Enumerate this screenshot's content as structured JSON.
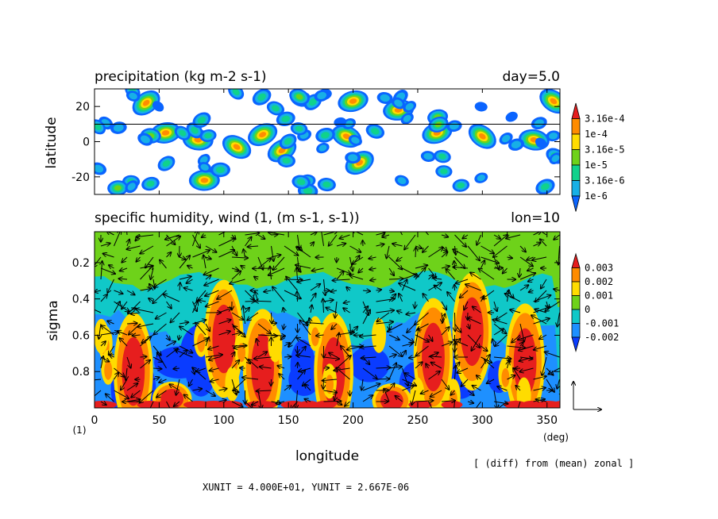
{
  "chart_data": [
    {
      "type": "heatmap",
      "title": "precipitation (kg m-2 s-1)",
      "annotation_right": "day=5.0",
      "ylabel": "latitude",
      "yticks": [
        "20",
        "0",
        "-20"
      ],
      "ytick_values": [
        20,
        0,
        -20
      ],
      "ylim": [
        -30,
        30
      ],
      "xlim": [
        0,
        360
      ],
      "reference_line_lat": 10,
      "colorbar": {
        "labels": [
          "3.16e-4",
          "1e-4",
          "3.16e-5",
          "1e-5",
          "3.16e-6",
          "1e-6"
        ],
        "colors": [
          "#0a64ff",
          "#17b0e6",
          "#10d28c",
          "#6ed21a",
          "#ffdc00",
          "#ff8c00",
          "#e61e1e"
        ],
        "scale": "log"
      },
      "features": [
        {
          "lon": 130,
          "lat": 4
        },
        {
          "lon": 195,
          "lat": 3
        },
        {
          "lon": 265,
          "lat": 5
        },
        {
          "lon": 300,
          "lat": 3
        },
        {
          "lon": 340,
          "lat": 1
        },
        {
          "lon": 55,
          "lat": 5
        },
        {
          "lon": 110,
          "lat": -3
        },
        {
          "lon": 145,
          "lat": -5
        },
        {
          "lon": 200,
          "lat": 23
        },
        {
          "lon": 235,
          "lat": 18
        },
        {
          "lon": 355,
          "lat": 23
        },
        {
          "lon": 80,
          "lat": 1
        },
        {
          "lon": 40,
          "lat": 22
        },
        {
          "lon": 205,
          "lat": -12
        },
        {
          "lon": 85,
          "lat": -22
        }
      ]
    },
    {
      "type": "heatmap",
      "title": "specific humidity, wind (1, (m s-1, s-1))",
      "annotation_right": "lon=10",
      "xlabel": "longitude",
      "ylabel": "sigma",
      "xticks": [
        "0",
        "50",
        "100",
        "150",
        "200",
        "250",
        "300",
        "350"
      ],
      "xtick_values": [
        0,
        50,
        100,
        150,
        200,
        250,
        300,
        350
      ],
      "yticks": [
        "0.2",
        "0.4",
        "0.6",
        "0.8"
      ],
      "ytick_values": [
        0.2,
        0.4,
        0.6,
        0.8
      ],
      "xlim": [
        0,
        360
      ],
      "ylim": [
        1.0,
        0.03
      ],
      "x_unit_label": "(deg)",
      "y_unit_label": "(1)",
      "colorbar": {
        "labels": [
          "0.003",
          "0.002",
          "0.001",
          "0",
          "-0.001",
          "-0.002"
        ],
        "colors": [
          "#0a3cff",
          "#1e90ff",
          "#10c8c8",
          "#6ed21a",
          "#ffdc00",
          "#ff8c00",
          "#e61e1e"
        ]
      },
      "features": [
        {
          "lon": 30,
          "sigma": 0.8
        },
        {
          "lon": 100,
          "sigma": 0.62
        },
        {
          "lon": 130,
          "sigma": 0.78
        },
        {
          "lon": 185,
          "sigma": 0.8
        },
        {
          "lon": 262,
          "sigma": 0.72
        },
        {
          "lon": 292,
          "sigma": 0.58
        },
        {
          "lon": 333,
          "sigma": 0.75
        },
        {
          "lon": 60,
          "sigma": 0.95
        },
        {
          "lon": 230,
          "sigma": 0.96
        }
      ],
      "footnote": "[ (diff) from (mean) zonal ]",
      "units": "XUNIT = 4.000E+01, YUNIT = 2.667E-06"
    }
  ]
}
